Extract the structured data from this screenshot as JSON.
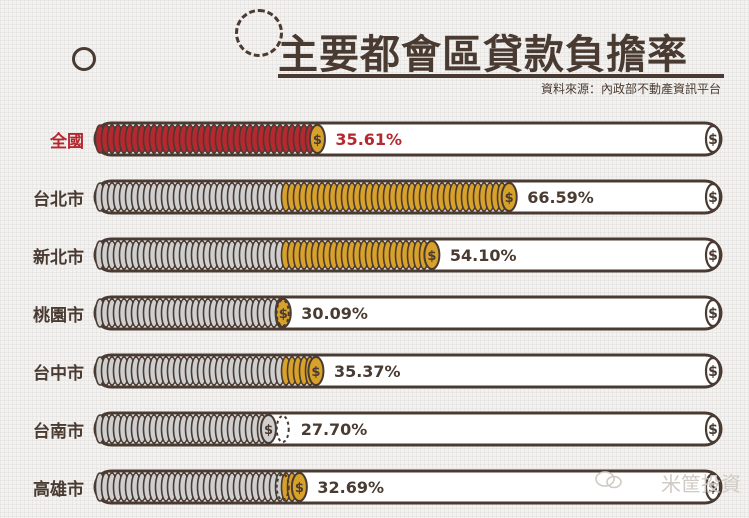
{
  "title": "主要都會區貸款負擔率",
  "source": "資料來源：內政部不動產資訊平台",
  "watermark": "米筐投資",
  "chart_data": {
    "type": "bar",
    "title": "主要都會區貸款負擔率",
    "categories": [
      "全國",
      "台北市",
      "新北市",
      "桃園市",
      "台中市",
      "台南市",
      "高雄市"
    ],
    "values": [
      35.61,
      66.59,
      54.1,
      30.09,
      35.37,
      27.7,
      32.69
    ],
    "value_labels": [
      "35.61%",
      "66.59%",
      "54.10%",
      "30.09%",
      "35.37%",
      "27.70%",
      "32.69%"
    ],
    "unit": "%",
    "ylim": [
      0,
      100
    ],
    "reference_line": 30,
    "highlight_index": 0,
    "colors": {
      "national": "#b5282f",
      "above_reference": "#d7a12a",
      "coin": "#cfcfcf",
      "outline": "#4a3b32",
      "tube": "#ffffff"
    }
  }
}
